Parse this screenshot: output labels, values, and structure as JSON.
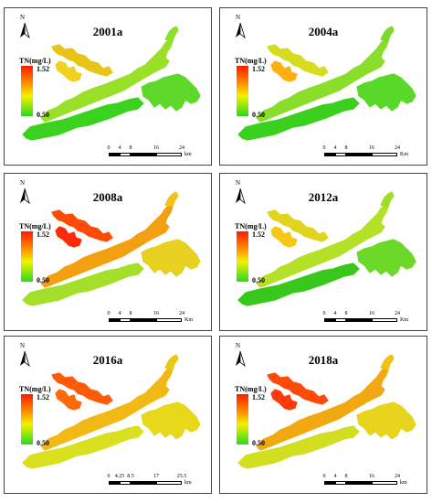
{
  "north_label": "N",
  "legend": {
    "title": "TN(mg/L)",
    "max": "1.52",
    "min": "0.50"
  },
  "panels": [
    {
      "title": "2001a",
      "scale_ticks": [
        "0",
        "4",
        "8",
        "16",
        "24"
      ],
      "unit": "km",
      "colors": {
        "west": "#f0d020",
        "arm": "#e8c418",
        "center": "#9ae028",
        "east": "#5ed82a",
        "south": "#3ad21e",
        "tail": "#8ce02c"
      }
    },
    {
      "title": "2004a",
      "scale_ticks": [
        "0",
        "4",
        "8",
        "16",
        "24"
      ],
      "unit": "Km",
      "colors": {
        "west": "#ffb010",
        "arm": "#d8dc20",
        "center": "#8ade2a",
        "east": "#58d828",
        "south": "#3cd01e",
        "tail": "#7ed82a"
      }
    },
    {
      "title": "2008a",
      "scale_ticks": [
        "0",
        "4",
        "8",
        "16",
        "24"
      ],
      "unit": "Km",
      "colors": {
        "west": "#ff2a0a",
        "arm": "#ff4a08",
        "center": "#f2a010",
        "east": "#e8d020",
        "south": "#a4e02a",
        "tail": "#f0c418"
      }
    },
    {
      "title": "2012a",
      "scale_ticks": [
        "0",
        "4",
        "8",
        "16",
        "24"
      ],
      "unit": "Km",
      "colors": {
        "west": "#f6c814",
        "arm": "#e0d41c",
        "center": "#b4e028",
        "east": "#6cd828",
        "south": "#38c81c",
        "tail": "#a0dc2a"
      }
    },
    {
      "title": "2016a",
      "scale_ticks": [
        "0",
        "4.25",
        "8.5",
        "17",
        "25.5"
      ],
      "unit": "km",
      "colors": {
        "west": "#ff6a08",
        "arm": "#ff5a08",
        "center": "#f2b814",
        "east": "#e8d81c",
        "south": "#d8e020",
        "tail": "#e8c818"
      }
    },
    {
      "title": "2018a",
      "scale_ticks": [
        "0",
        "4",
        "8",
        "16",
        "24"
      ],
      "unit": "km",
      "colors": {
        "west": "#ff3a08",
        "arm": "#ff4a08",
        "center": "#f2a810",
        "east": "#e8d41c",
        "south": "#d2de20",
        "tail": "#ecc418"
      }
    }
  ]
}
